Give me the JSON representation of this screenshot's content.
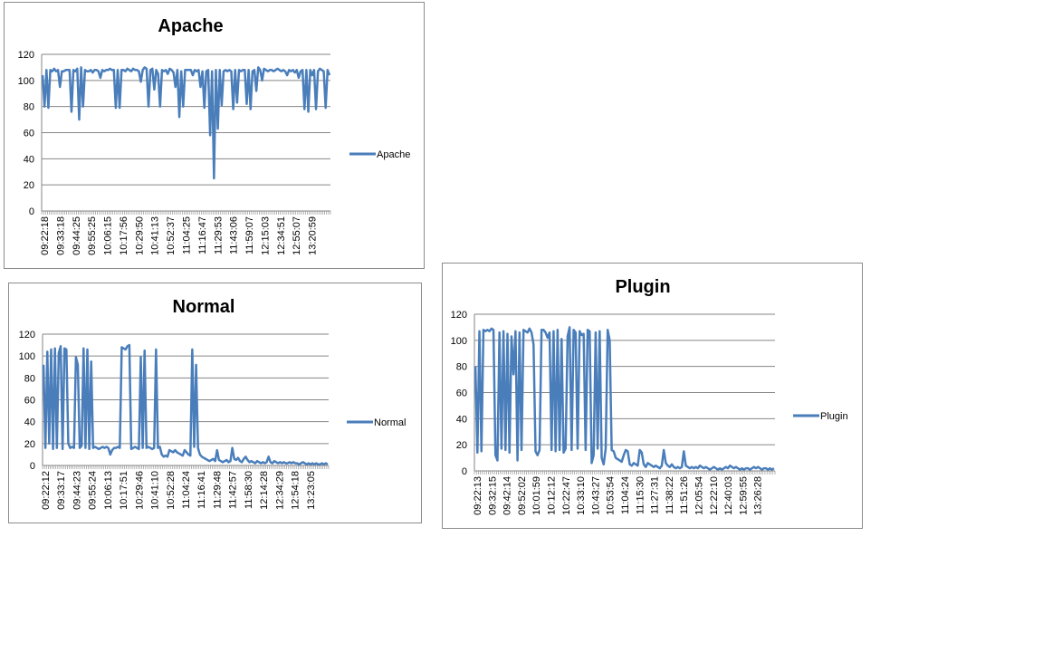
{
  "chart_data": [
    {
      "id": "apache",
      "type": "line",
      "title": "Apache",
      "xlabel": "",
      "ylabel": "",
      "ylim": [
        0,
        120
      ],
      "yticks": [
        0,
        20,
        40,
        60,
        80,
        100,
        120
      ],
      "grid": true,
      "legend": "right",
      "color": "#4a7ebb",
      "x_tick_labels": [
        "09:22:18",
        "09:33:18",
        "09:44:25",
        "09:55:25",
        "10:06:15",
        "10:17:56",
        "10:29:50",
        "10:41:13",
        "10:52:37",
        "11:04:25",
        "11:16:47",
        "11:29:53",
        "11:43:06",
        "11:59:07",
        "12:15:03",
        "12:34:51",
        "12:55:07",
        "13:20:59"
      ],
      "series": [
        {
          "name": "Apache",
          "values": [
            104,
            80,
            108,
            79,
            108,
            107,
            109,
            107,
            108,
            95,
            107,
            107,
            108,
            108,
            108,
            76,
            108,
            107,
            109,
            70,
            110,
            80,
            108,
            107,
            107,
            108,
            106,
            108,
            108,
            107,
            102,
            108,
            107,
            108,
            108,
            109,
            108,
            108,
            79,
            108,
            79,
            108,
            108,
            107,
            109,
            108,
            107,
            109,
            108,
            108,
            107,
            99,
            108,
            110,
            109,
            80,
            108,
            109,
            93,
            108,
            105,
            80,
            108,
            107,
            108,
            105,
            109,
            108,
            106,
            95,
            108,
            72,
            107,
            80,
            108,
            108,
            108,
            108,
            104,
            108,
            107,
            108,
            95,
            107,
            79,
            107,
            108,
            58,
            107,
            25,
            108,
            63,
            108,
            81,
            107,
            108,
            107,
            108,
            107,
            78,
            108,
            83,
            108,
            107,
            108,
            108,
            82,
            108,
            78,
            107,
            108,
            92,
            110,
            108,
            100,
            109,
            108,
            107,
            108,
            108,
            107,
            108,
            109,
            108,
            107,
            108,
            107,
            104,
            108,
            107,
            108,
            106,
            108,
            102,
            107,
            108,
            78,
            108,
            76,
            108,
            104,
            108,
            78,
            107,
            109,
            108,
            107,
            79,
            108,
            104
          ],
          "extra_labels": []
        }
      ]
    },
    {
      "id": "normal",
      "type": "line",
      "title": "Normal",
      "xlabel": "",
      "ylabel": "",
      "ylim": [
        0,
        120
      ],
      "yticks": [
        0,
        20,
        40,
        60,
        80,
        100,
        120
      ],
      "grid": true,
      "legend": "right",
      "color": "#4a7ebb",
      "x_tick_labels": [
        "09:22:12",
        "09:33:17",
        "09:44:23",
        "09:55:24",
        "10:06:13",
        "10:17:51",
        "10:29:46",
        "10:41:10",
        "10:52:28",
        "11:04:24",
        "11:16:41",
        "11:29:48",
        "11:42:57",
        "11:58:30",
        "12:14:28",
        "12:34:29",
        "12:54:18",
        "13:23:05"
      ],
      "series": [
        {
          "name": "Normal",
          "values": [
            92,
            16,
            104,
            20,
            106,
            15,
            107,
            16,
            103,
            109,
            15,
            107,
            106,
            20,
            16,
            17,
            16,
            99,
            92,
            16,
            18,
            107,
            16,
            106,
            15,
            95,
            16,
            17,
            16,
            15,
            16,
            17,
            16,
            17,
            16,
            10,
            14,
            16,
            16,
            17,
            16,
            108,
            107,
            106,
            109,
            110,
            15,
            16,
            17,
            16,
            15,
            99,
            16,
            105,
            16,
            17,
            16,
            15,
            16,
            106,
            16,
            17,
            10,
            8,
            9,
            8,
            14,
            13,
            12,
            14,
            12,
            11,
            10,
            9,
            14,
            12,
            10,
            9,
            106,
            17,
            92,
            16,
            10,
            8,
            7,
            6,
            5,
            4,
            5,
            6,
            4,
            14,
            5,
            4,
            3,
            4,
            5,
            3,
            4,
            16,
            6,
            5,
            7,
            4,
            3,
            6,
            8,
            5,
            3,
            4,
            3,
            2,
            4,
            3,
            2,
            3,
            2,
            3,
            8,
            3,
            2,
            4,
            3,
            2,
            3,
            2,
            3,
            2,
            2,
            3,
            2,
            3,
            2,
            2,
            1,
            2,
            3,
            2,
            1,
            2,
            1,
            2,
            1,
            2,
            1,
            1,
            2,
            1,
            2,
            1
          ],
          "extra_labels": []
        }
      ]
    },
    {
      "id": "plugin",
      "type": "line",
      "title": "Plugin",
      "xlabel": "",
      "ylabel": "",
      "ylim": [
        0,
        120
      ],
      "yticks": [
        0,
        20,
        40,
        60,
        80,
        100,
        120
      ],
      "grid": true,
      "legend": "right",
      "color": "#4a7ebb",
      "x_tick_labels": [
        "09:22:13",
        "09:32:15",
        "09:42:14",
        "09:52:02",
        "10:01:59",
        "10:12:12",
        "10:22:47",
        "10:33:10",
        "10:43:27",
        "10:53:54",
        "11:04:24",
        "11:15:30",
        "11:27:31",
        "11:38:22",
        "11:51:26",
        "12:05:54",
        "12:22:10",
        "12:40:03",
        "12:59:55",
        "13:26:28"
      ],
      "series": [
        {
          "name": "Plugin",
          "values": [
            80,
            14,
            107,
            15,
            108,
            107,
            108,
            107,
            109,
            108,
            12,
            8,
            106,
            17,
            107,
            16,
            105,
            14,
            103,
            74,
            107,
            8,
            106,
            16,
            108,
            107,
            106,
            109,
            106,
            97,
            15,
            12,
            16,
            108,
            108,
            106,
            102,
            106,
            16,
            107,
            15,
            108,
            16,
            101,
            14,
            17,
            103,
            110,
            16,
            108,
            106,
            17,
            107,
            104,
            105,
            16,
            108,
            107,
            6,
            12,
            106,
            17,
            107,
            10,
            5,
            17,
            108,
            100,
            16,
            15,
            10,
            9,
            8,
            7,
            12,
            16,
            15,
            5,
            4,
            6,
            5,
            4,
            16,
            14,
            5,
            3,
            6,
            5,
            4,
            3,
            4,
            3,
            2,
            4,
            16,
            6,
            4,
            3,
            5,
            3,
            2,
            3,
            2,
            3,
            15,
            4,
            3,
            2,
            3,
            2,
            3,
            2,
            4,
            3,
            2,
            3,
            2,
            1,
            2,
            3,
            2,
            1,
            2,
            1,
            2,
            3,
            2,
            4,
            3,
            2,
            3,
            2,
            1,
            2,
            1,
            2,
            2,
            1,
            2,
            3,
            2,
            3,
            2,
            1,
            2,
            2,
            1,
            2,
            1,
            2
          ]
        }
      ]
    }
  ]
}
